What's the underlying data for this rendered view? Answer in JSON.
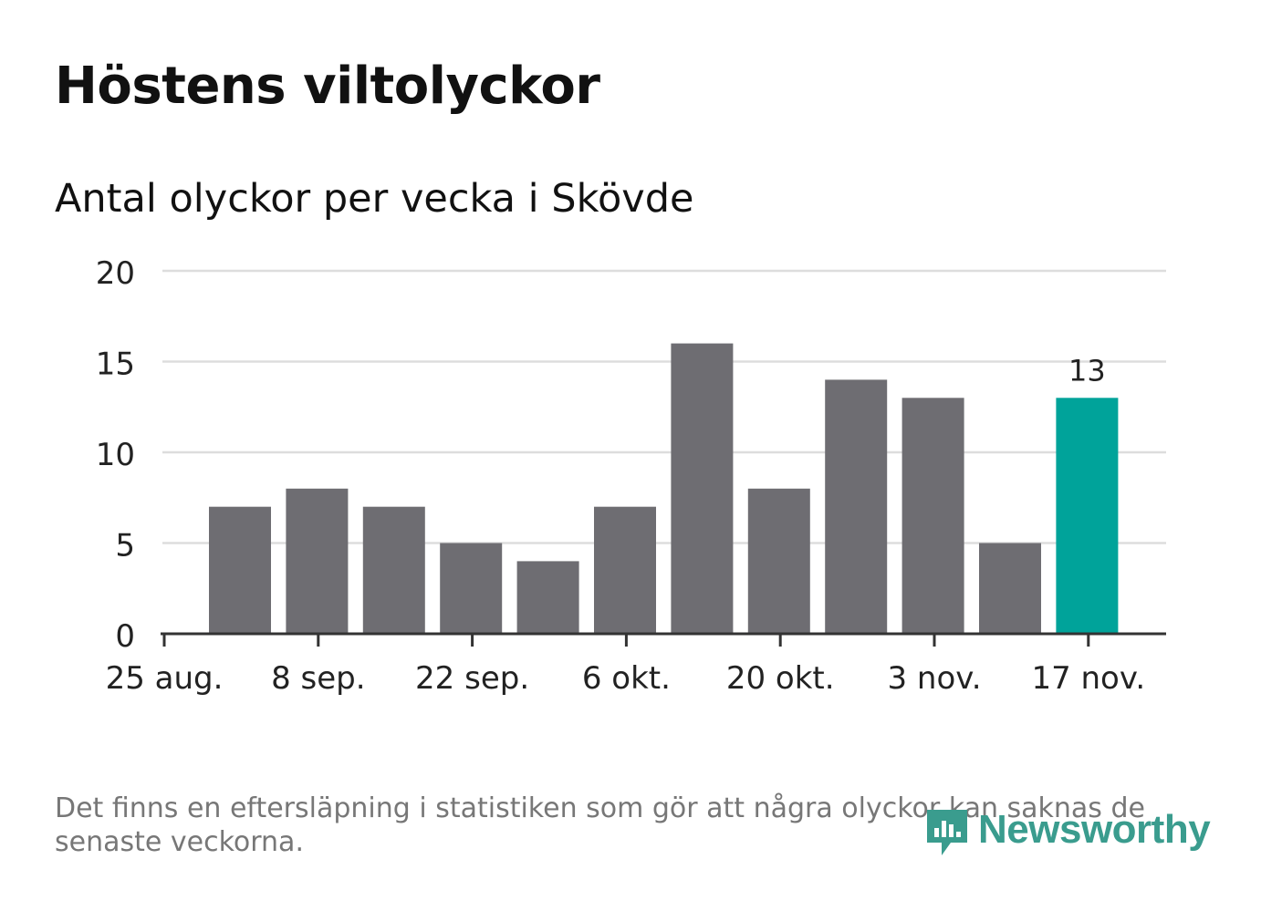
{
  "title": "Höstens viltolyckor",
  "subtitle": "Antal olyckor per vecka i Skövde",
  "footnote": "Det finns en eftersläpning i statistiken som gör att några olyckor kan saknas de senaste veckorna.",
  "logo": {
    "text": "Newsworthy",
    "icon": "newsworthy-logo-icon"
  },
  "colors": {
    "bar": "#6e6d72",
    "highlight": "#00a39a",
    "grid": "#dddddd",
    "axis": "#333333",
    "logo": "#3a9c8e"
  },
  "chart_data": {
    "type": "bar",
    "title": "Antal olyckor per vecka i Skövde",
    "xlabel": "",
    "ylabel": "",
    "ylim": [
      0,
      20
    ],
    "yticks": [
      0,
      5,
      10,
      15,
      20
    ],
    "xtick_labels": [
      "25 aug.",
      "8 sep.",
      "22 sep.",
      "6 okt.",
      "20 okt.",
      "3 nov.",
      "17 nov."
    ],
    "values": [
      7,
      8,
      7,
      5,
      4,
      7,
      16,
      8,
      14,
      13,
      5,
      13
    ],
    "highlight_index": 11,
    "highlight_label": "13"
  }
}
